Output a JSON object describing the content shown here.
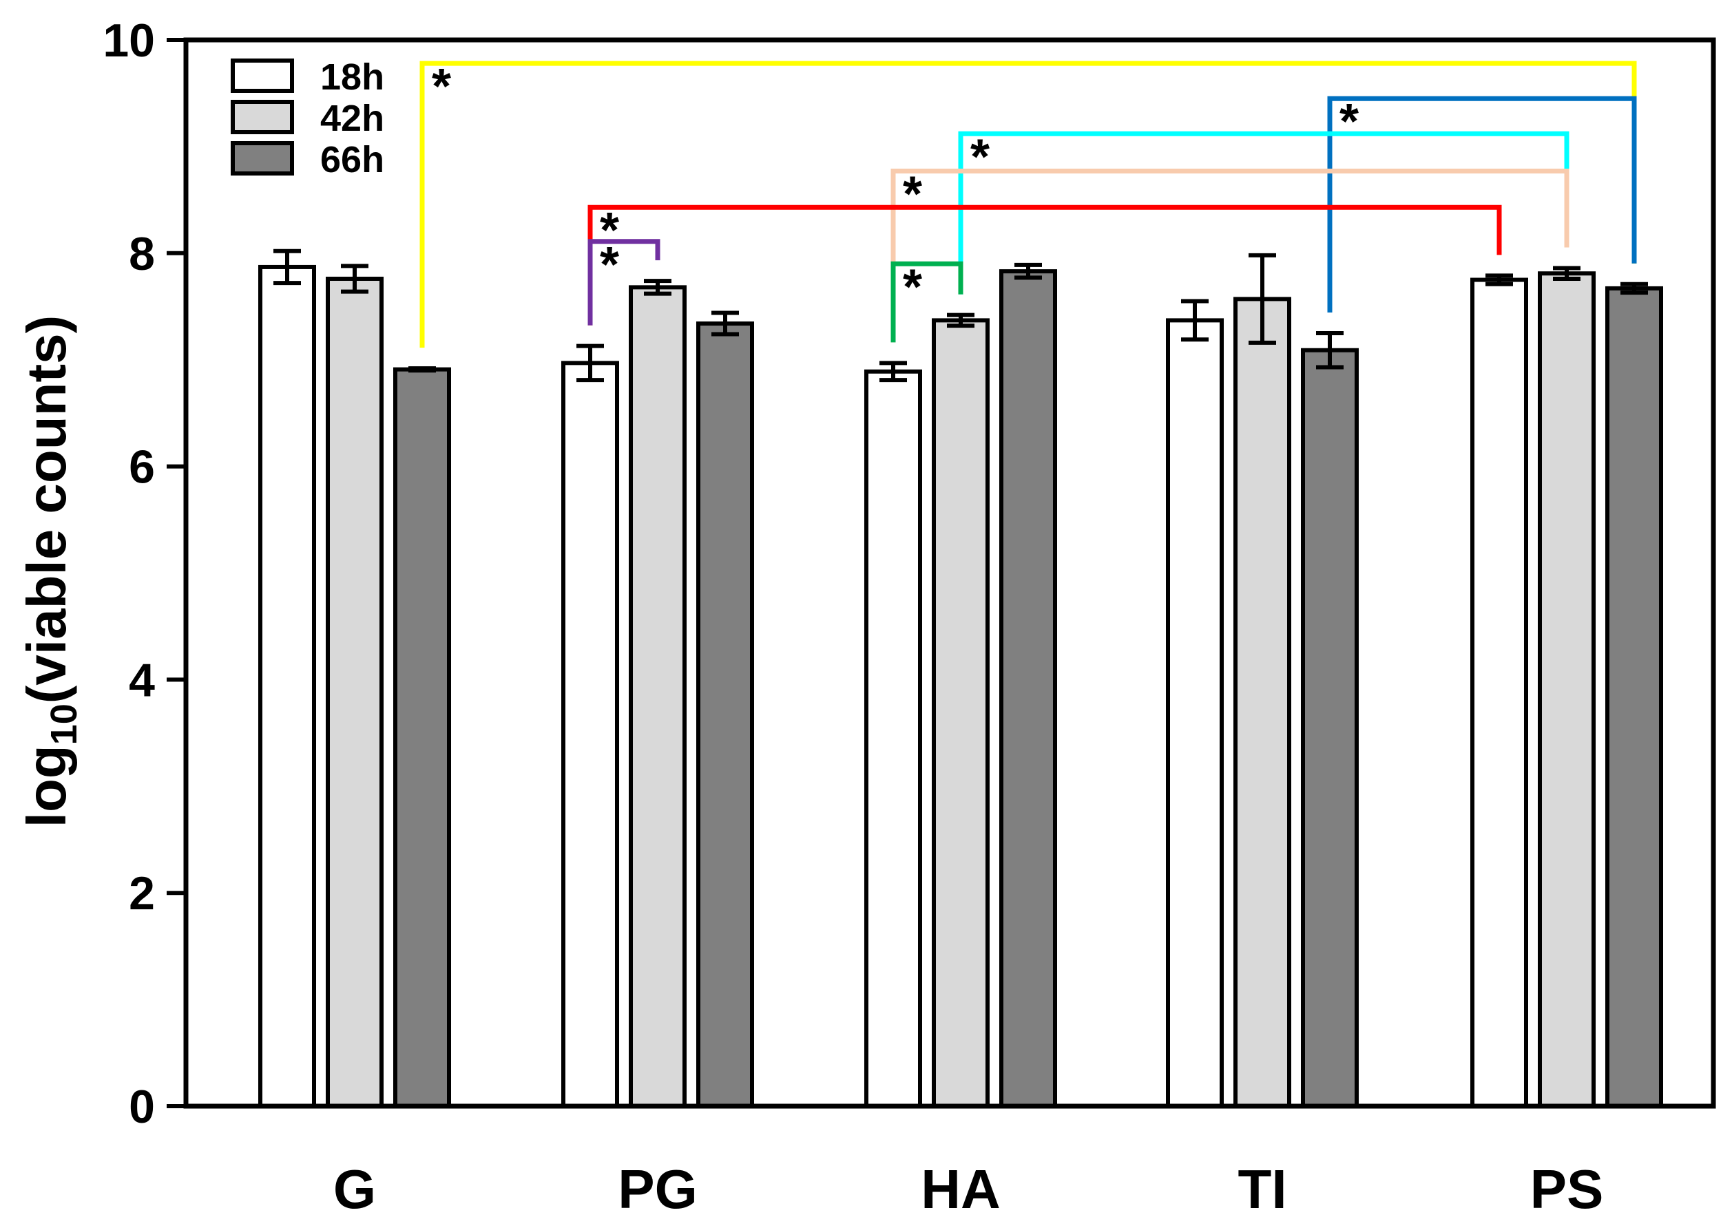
{
  "chart_data": {
    "type": "bar",
    "title": "",
    "xlabel": "",
    "ylabel": {
      "prefix": "log",
      "subscript": "10",
      "suffix": "(viable counts)"
    },
    "ylim": [
      0,
      10
    ],
    "yticks": [
      0,
      2,
      4,
      6,
      8,
      10
    ],
    "categories": [
      "G",
      "PG",
      "HA",
      "TI",
      "PS"
    ],
    "legend_position": "top-left",
    "series": [
      {
        "name": "18h",
        "color": "#ffffff",
        "values": [
          7.87,
          6.97,
          6.89,
          7.37,
          7.75
        ],
        "errors": [
          0.15,
          0.16,
          0.08,
          0.18,
          0.04
        ]
      },
      {
        "name": "42h",
        "color": "#d9d9d9",
        "values": [
          7.76,
          7.68,
          7.37,
          7.57,
          7.81
        ],
        "errors": [
          0.12,
          0.06,
          0.05,
          0.41,
          0.05
        ]
      },
      {
        "name": "66h",
        "color": "#808080",
        "values": [
          6.91,
          7.34,
          7.83,
          7.09,
          7.67
        ],
        "errors": [
          0.01,
          0.1,
          0.06,
          0.16,
          0.04
        ]
      }
    ],
    "significance": [
      {
        "from": [
          0,
          2
        ],
        "to": [
          4,
          2
        ],
        "level": 9.78,
        "color": "#ffff00",
        "label": "*"
      },
      {
        "from": [
          3,
          2
        ],
        "to": [
          4,
          2
        ],
        "level": 9.45,
        "color": "#0070c0",
        "label": "*"
      },
      {
        "from": [
          2,
          1
        ],
        "to": [
          4,
          1
        ],
        "level": 9.12,
        "color": "#00ffff",
        "label": "*"
      },
      {
        "from": [
          2,
          0
        ],
        "to": [
          4,
          1
        ],
        "level": 8.77,
        "color": "#f8cbad",
        "label": "*"
      },
      {
        "from": [
          1,
          0
        ],
        "to": [
          4,
          0
        ],
        "level": 8.43,
        "color": "#ff0000",
        "label": "*"
      },
      {
        "from": [
          1,
          0
        ],
        "to": [
          1,
          1
        ],
        "level": 8.11,
        "color": "#7030a0",
        "label": "*"
      },
      {
        "from": [
          2,
          0
        ],
        "to": [
          2,
          1
        ],
        "level": 7.9,
        "color": "#00b050",
        "label": "*"
      }
    ]
  }
}
